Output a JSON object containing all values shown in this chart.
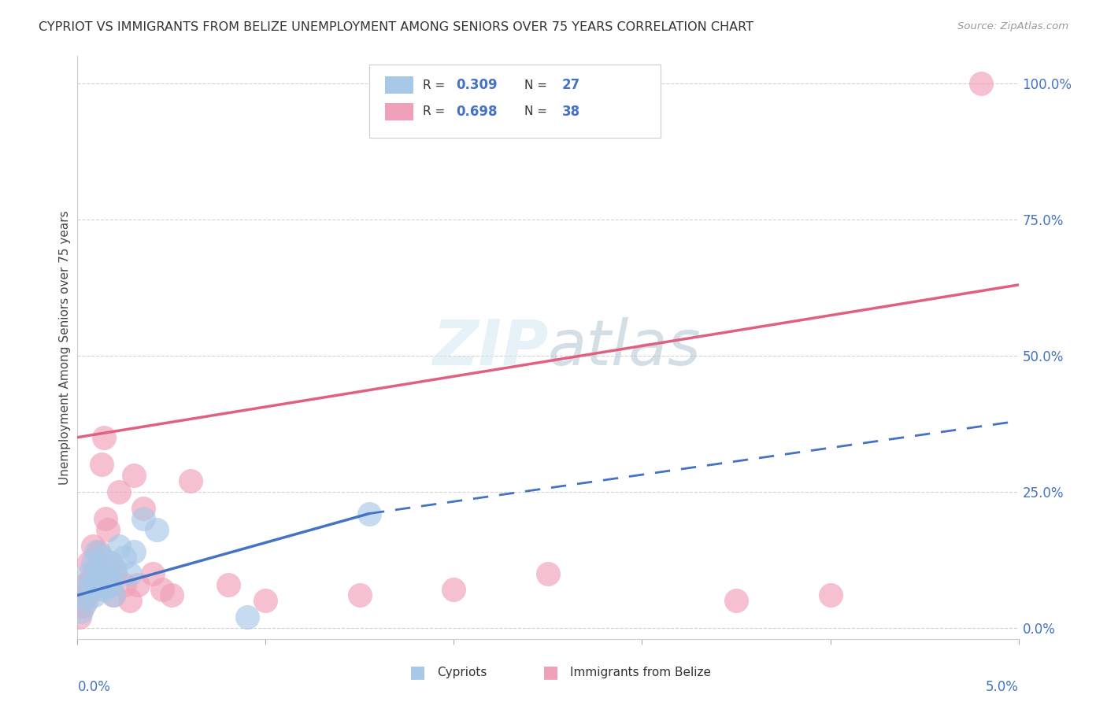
{
  "title": "CYPRIOT VS IMMIGRANTS FROM BELIZE UNEMPLOYMENT AMONG SENIORS OVER 75 YEARS CORRELATION CHART",
  "source": "Source: ZipAtlas.com",
  "ylabel": "Unemployment Among Seniors over 75 years",
  "xlim": [
    0.0,
    5.0
  ],
  "ylim": [
    0.0,
    105.0
  ],
  "yticks": [
    0,
    25,
    50,
    75,
    100
  ],
  "ytick_labels": [
    "0.0%",
    "25.0%",
    "50.0%",
    "75.0%",
    "100.0%"
  ],
  "watermark_text": "ZIPatlas",
  "cypriot_color": "#a8c8e8",
  "belize_color": "#f0a0b8",
  "cypriot_trend_color": "#4472c4",
  "belize_trend_color": "#e06080",
  "background_color": "#ffffff",
  "grid_color": "#cccccc",
  "cypriot_R": "0.309",
  "cypriot_N": "27",
  "belize_R": "0.698",
  "belize_N": "38",
  "cy_x": [
    0.02,
    0.04,
    0.05,
    0.06,
    0.07,
    0.08,
    0.09,
    0.1,
    0.1,
    0.11,
    0.12,
    0.13,
    0.14,
    0.15,
    0.16,
    0.17,
    0.18,
    0.19,
    0.2,
    0.22,
    0.25,
    0.28,
    0.3,
    0.35,
    0.42,
    0.9,
    1.55
  ],
  "cy_y": [
    3,
    7,
    5,
    10,
    8,
    12,
    6,
    9,
    14,
    11,
    8,
    13,
    7,
    10,
    9,
    12,
    8,
    6,
    11,
    15,
    13,
    10,
    14,
    20,
    18,
    2,
    21
  ],
  "bz_x": [
    0.01,
    0.02,
    0.03,
    0.04,
    0.05,
    0.06,
    0.07,
    0.08,
    0.09,
    0.1,
    0.11,
    0.12,
    0.13,
    0.14,
    0.15,
    0.16,
    0.17,
    0.18,
    0.19,
    0.2,
    0.22,
    0.25,
    0.28,
    0.3,
    0.32,
    0.35,
    0.4,
    0.45,
    0.5,
    0.6,
    0.8,
    1.0,
    1.5,
    2.0,
    2.5,
    3.5,
    4.0,
    4.8
  ],
  "bz_y": [
    2,
    5,
    4,
    8,
    6,
    12,
    9,
    15,
    7,
    11,
    14,
    10,
    30,
    35,
    20,
    18,
    8,
    12,
    6,
    10,
    25,
    8,
    5,
    28,
    8,
    22,
    10,
    7,
    6,
    27,
    8,
    5,
    6,
    7,
    10,
    5,
    6,
    100
  ],
  "cy_trend_x0": 0.0,
  "cy_trend_y0": 6.0,
  "cy_trend_x1": 1.55,
  "cy_trend_y1": 21.0,
  "cy_dash_x0": 1.55,
  "cy_dash_y0": 21.0,
  "cy_dash_x1": 5.0,
  "cy_dash_y1": 38.0,
  "bz_trend_x0": 0.0,
  "bz_trend_y0": 35.0,
  "bz_trend_x1": 5.0,
  "bz_trend_y1": 63.0
}
